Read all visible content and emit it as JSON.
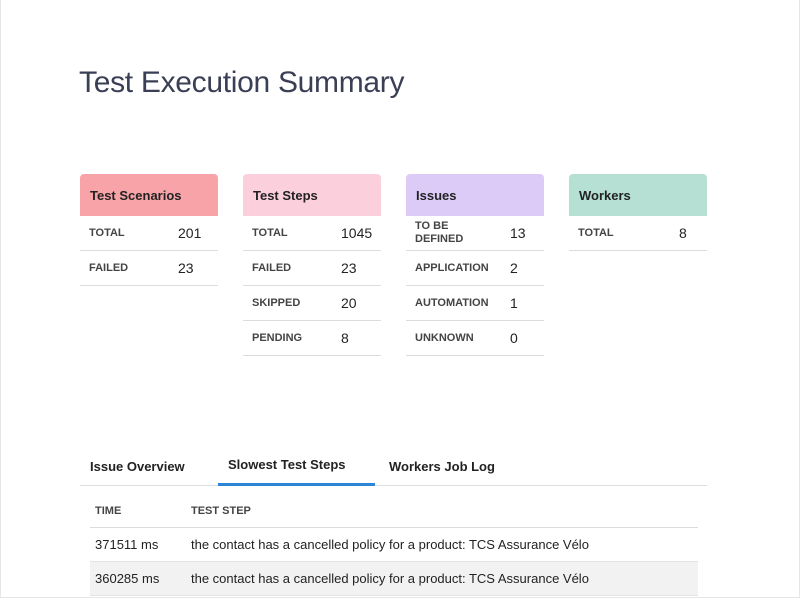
{
  "page": {
    "title": "Test Execution Summary"
  },
  "colors": {
    "scenarios": "#f8a3a8",
    "steps": "#fccfdd",
    "issues": "#dccbf7",
    "workers": "#b6e0d3",
    "active_tab": "#2b86d5"
  },
  "cards": {
    "scenarios": {
      "title": "Test Scenarios",
      "rows": [
        {
          "label": "TOTAL",
          "value": "201"
        },
        {
          "label": "FAILED",
          "value": "23"
        }
      ]
    },
    "steps": {
      "title": "Test Steps",
      "rows": [
        {
          "label": "TOTAL",
          "value": "1045"
        },
        {
          "label": "FAILED",
          "value": "23"
        },
        {
          "label": "SKIPPED",
          "value": "20"
        },
        {
          "label": "PENDING",
          "value": "8"
        }
      ]
    },
    "issues": {
      "title": "Issues",
      "rows": [
        {
          "label": "TO BE DEFINED",
          "value": "13"
        },
        {
          "label": "APPLICATION",
          "value": "2"
        },
        {
          "label": "AUTOMATION",
          "value": "1"
        },
        {
          "label": "UNKNOWN",
          "value": "0"
        }
      ]
    },
    "workers": {
      "title": "Workers",
      "rows": [
        {
          "label": "TOTAL",
          "value": "8"
        }
      ]
    }
  },
  "tabs": [
    {
      "label": "Issue Overview",
      "active": false
    },
    {
      "label": "Slowest Test Steps",
      "active": true
    },
    {
      "label": "Workers Job Log",
      "active": false
    }
  ],
  "slowest_steps": {
    "headers": [
      "TIME",
      "TEST STEP"
    ],
    "rows": [
      [
        "371511 ms",
        "the contact has a cancelled policy for a product: TCS Assurance Vélo"
      ],
      [
        "360285 ms",
        "the contact has a cancelled policy for a product: TCS Assurance Vélo"
      ]
    ]
  }
}
